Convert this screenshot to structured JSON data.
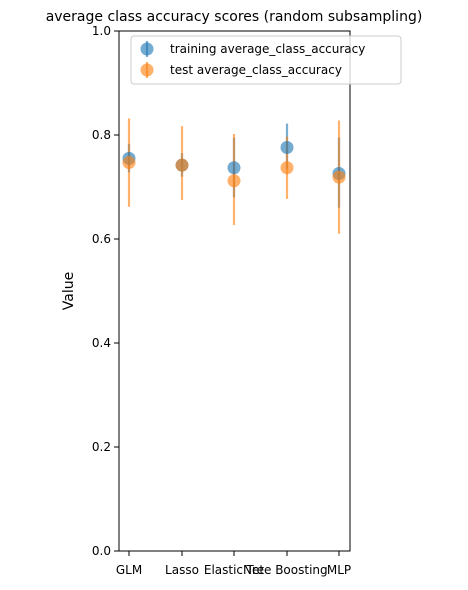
{
  "chart_data": {
    "type": "scatter",
    "title": "average class accuracy scores (random subsampling)",
    "xlabel": "",
    "ylabel": "Value",
    "categories": [
      "GLM",
      "Lasso",
      "ElasticNet",
      "Tree Boosting",
      "MLP"
    ],
    "ylim": [
      0.0,
      1.0
    ],
    "yticks": [
      "0.0",
      "0.2",
      "0.4",
      "0.6",
      "0.8",
      "1.0"
    ],
    "grid": false,
    "legend_position": "top-right",
    "series": [
      {
        "name": "training average_class_accuracy",
        "color": "#1f77b4",
        "values": [
          0.755,
          0.742,
          0.737,
          0.776,
          0.726
        ],
        "err_low": [
          0.728,
          0.72,
          0.68,
          0.735,
          0.66
        ],
        "err_high": [
          0.783,
          0.765,
          0.795,
          0.822,
          0.795
        ]
      },
      {
        "name": "test average_class_accuracy",
        "color": "#ff7f0e",
        "values": [
          0.747,
          0.742,
          0.712,
          0.737,
          0.719
        ],
        "err_low": [
          0.662,
          0.675,
          0.627,
          0.677,
          0.61
        ],
        "err_high": [
          0.832,
          0.817,
          0.802,
          0.797,
          0.828
        ]
      }
    ]
  }
}
